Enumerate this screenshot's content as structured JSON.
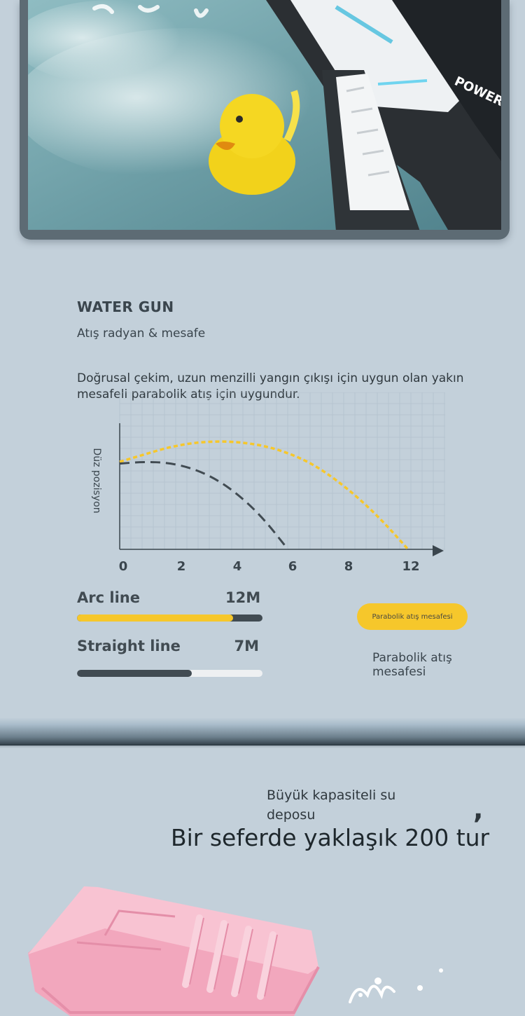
{
  "hero": {
    "gun_brand_text": "POWER"
  },
  "range_section": {
    "title": "WATER GUN",
    "subtitle": "Atış radyan & mesafe",
    "description": "Doğrusal çekim, uzun menzilli yangın çıkışı için uygun olan yakın mesafeli parabolik atış için uygundur.",
    "stats": [
      {
        "label": "Arc line",
        "value": "12M",
        "fraction": 0.84,
        "fill_color": "#f6c72b",
        "track_color": "#414b52"
      },
      {
        "label": "Straight line",
        "value": "7M",
        "fraction": 0.62,
        "fill_color": "#414b52",
        "track_color": "#eef0f2"
      }
    ],
    "pill_label": "Parabolik atış mesafesi",
    "legend_text": "Parabolik atış mesafesi"
  },
  "chart_data": {
    "type": "line",
    "ylabel": "Düz pozisyon",
    "xlabel": "",
    "x_ticks": [
      "0",
      "2",
      "4",
      "6",
      "8",
      "12"
    ],
    "xlim": [
      0,
      12
    ],
    "grid": true,
    "series": [
      {
        "style": "dotted",
        "color": "#f6c72b",
        "x": [
          0,
          1,
          2,
          3,
          4,
          5,
          6,
          7,
          8,
          9,
          10,
          11,
          12
        ],
        "y": [
          4.9,
          5.3,
          5.7,
          5.95,
          6.05,
          6.0,
          5.8,
          5.4,
          4.8,
          3.9,
          2.8,
          1.5,
          0
        ]
      },
      {
        "style": "dashed",
        "color": "#414b52",
        "x": [
          0,
          1,
          2,
          3,
          4,
          5,
          6,
          7
        ],
        "y": [
          4.8,
          4.9,
          4.85,
          4.55,
          3.95,
          3.0,
          1.7,
          0
        ]
      }
    ],
    "ylim": [
      0,
      8
    ]
  },
  "capacity_section": {
    "subtitle": "Büyük kapasiteli su deposu",
    "comma": ",",
    "headline": "Bir seferde yaklaşık 200 tur"
  }
}
